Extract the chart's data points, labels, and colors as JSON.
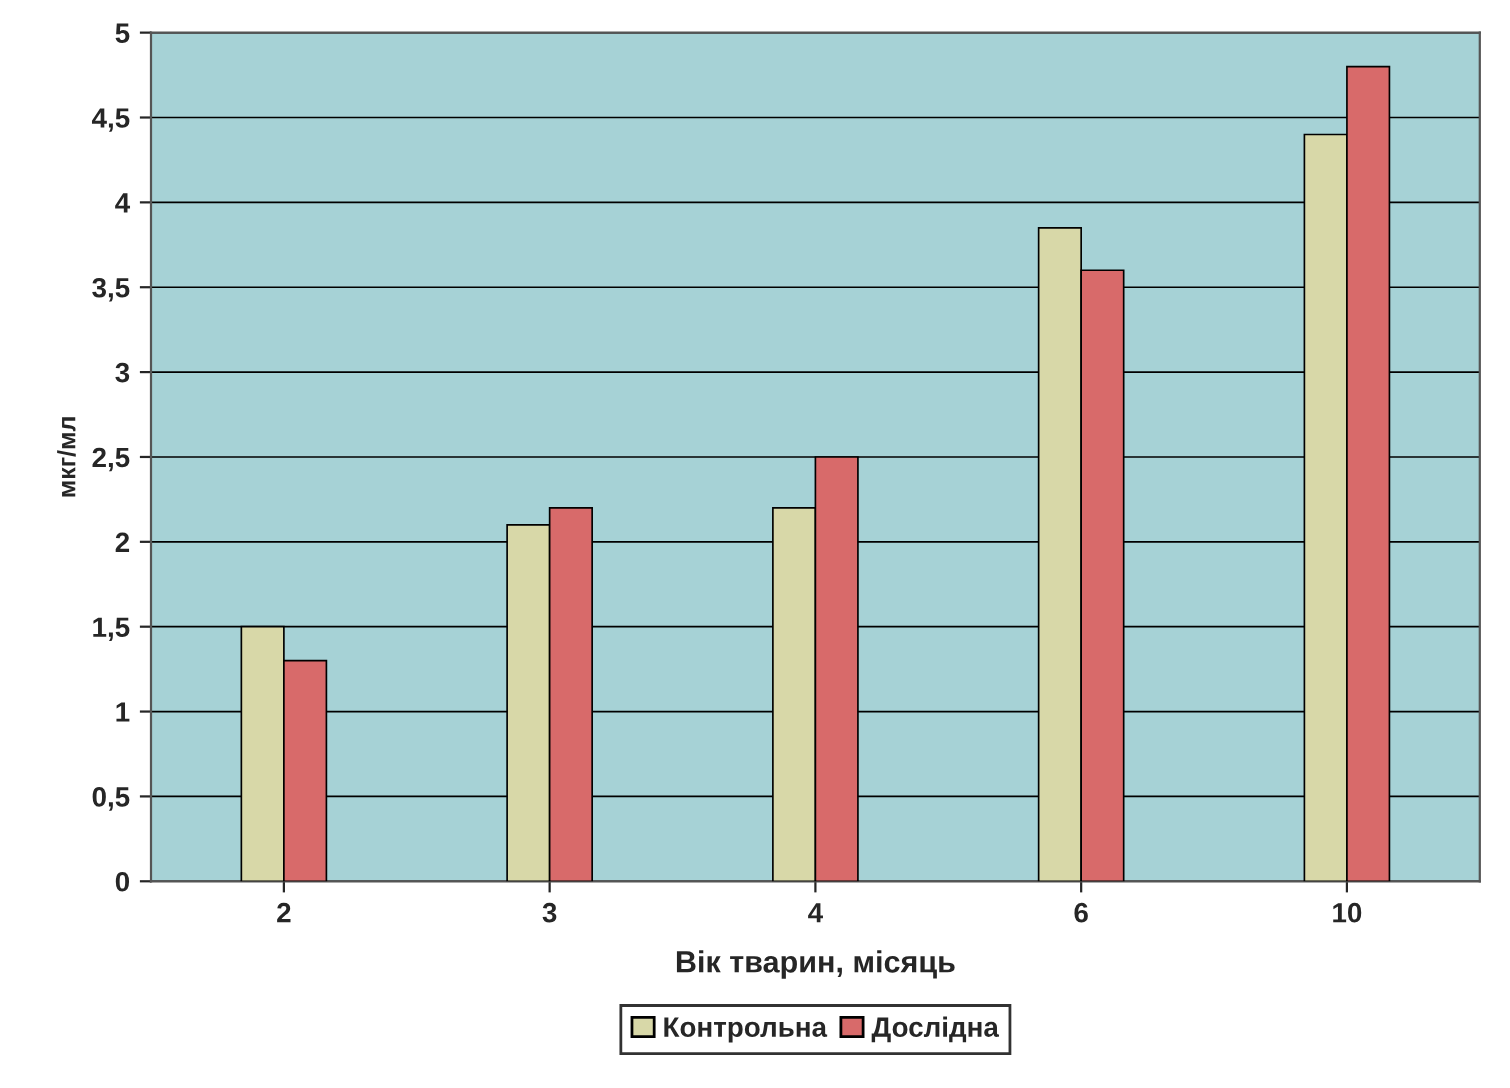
{
  "chart_data": {
    "type": "bar",
    "ylabel": "мкг/мл",
    "xlabel": "Вік тварин, місяць",
    "categories": [
      "2",
      "3",
      "4",
      "6",
      "10"
    ],
    "series": [
      {
        "name": "Контрольна",
        "color": "#d8d8a8",
        "values": [
          1.5,
          2.1,
          2.2,
          3.85,
          4.4
        ]
      },
      {
        "name": "Дослідна",
        "color": "#d86a6a",
        "values": [
          1.3,
          2.2,
          2.5,
          3.6,
          4.8
        ]
      }
    ],
    "ylim": [
      0,
      5
    ],
    "yticks": [
      0,
      {
        "value": 0.5,
        "label": "0,5"
      },
      1,
      {
        "value": 1.5,
        "label": "1,5"
      },
      2,
      {
        "value": 2.5,
        "label": "2,5"
      },
      3,
      {
        "value": 3.5,
        "label": "3,5"
      },
      4,
      {
        "value": 4.5,
        "label": "4,5"
      },
      5
    ],
    "grid": "y",
    "legend": "bottom"
  }
}
